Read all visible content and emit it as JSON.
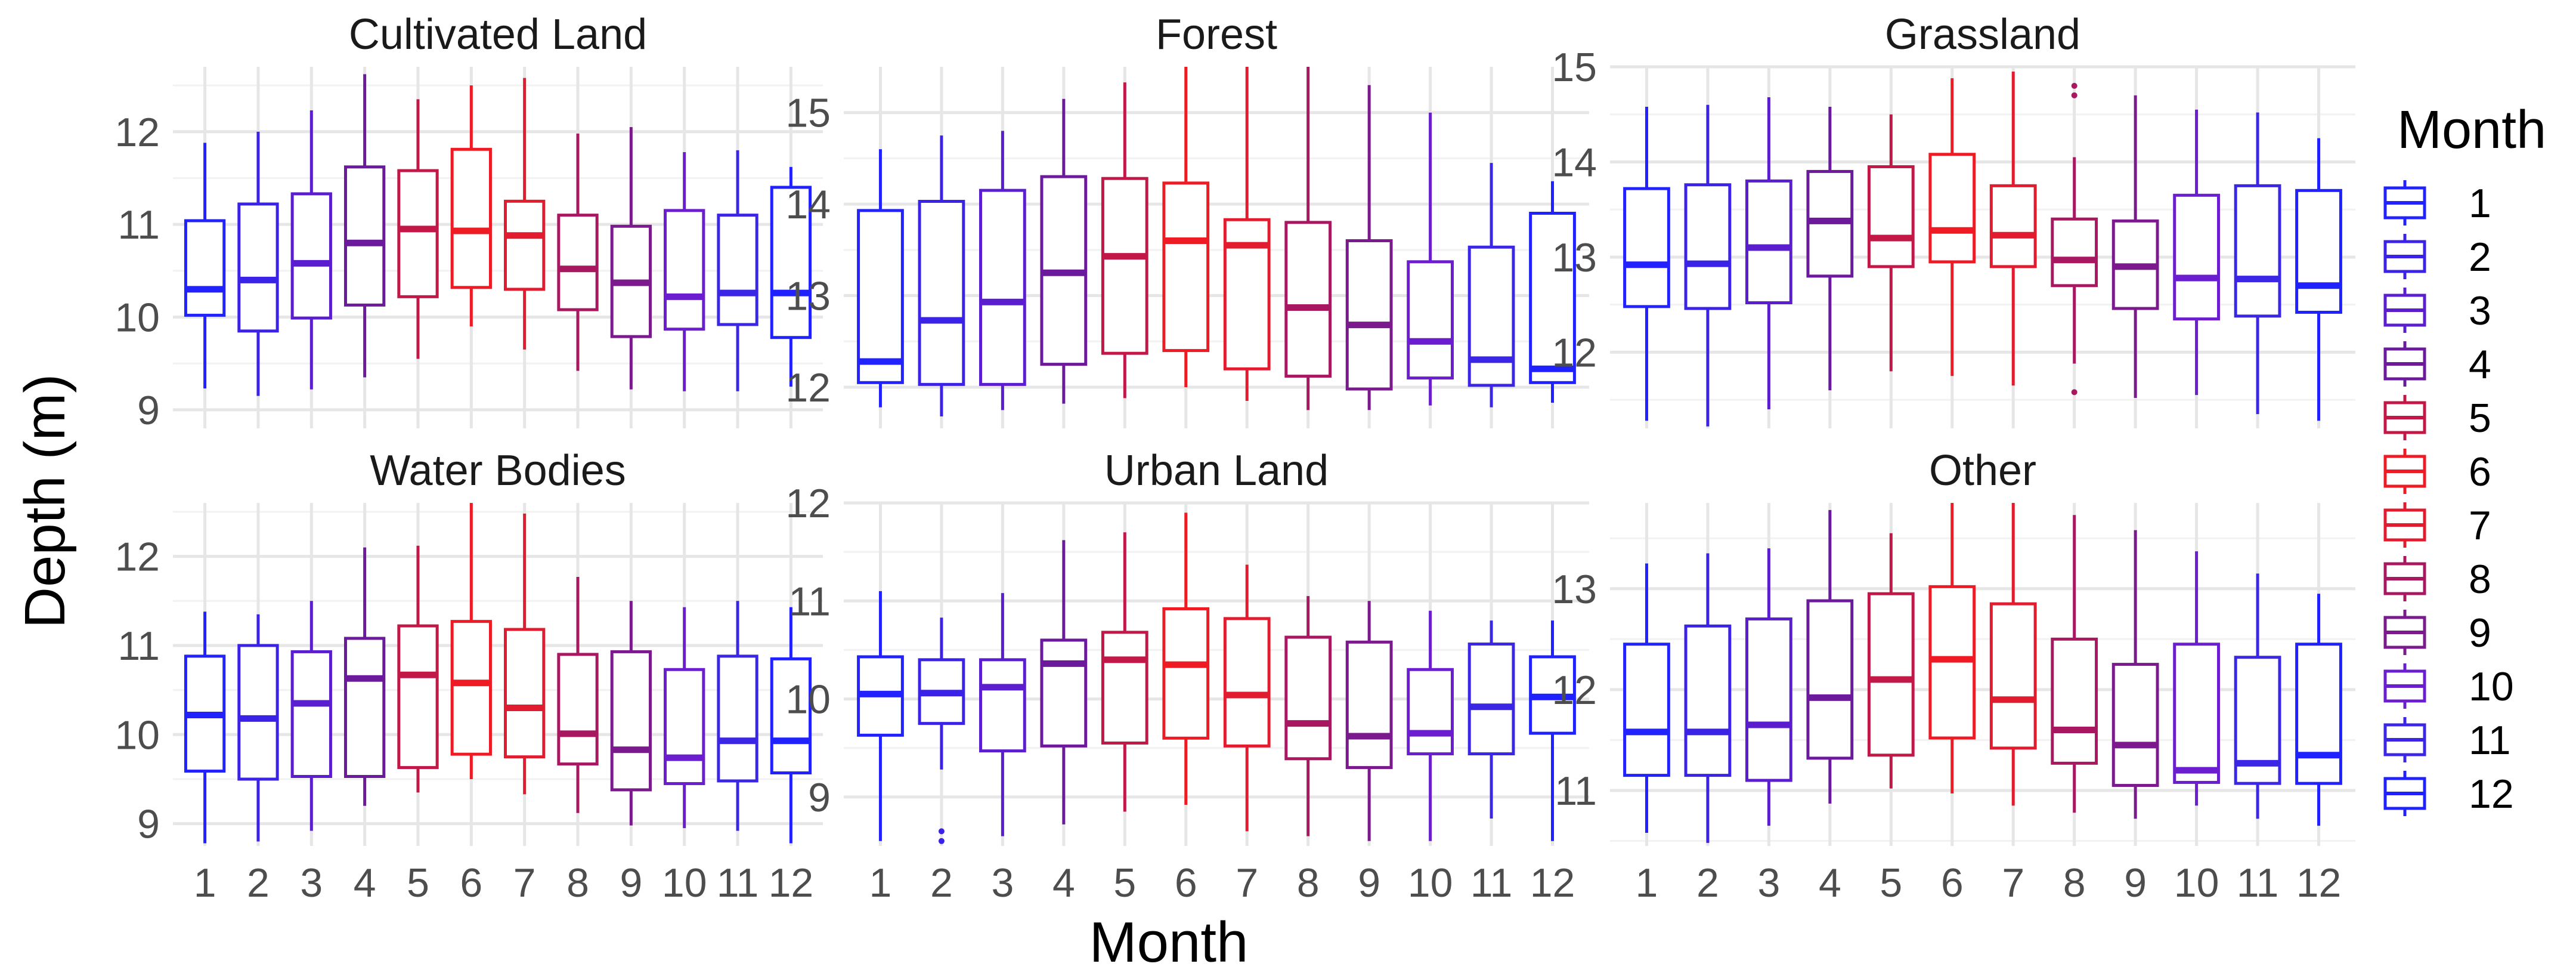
{
  "colors": {
    "1": "#2222ff",
    "2": "#3a22e6",
    "3": "#5a1ecf",
    "4": "#6a1a9a",
    "5": "#c21848",
    "6": "#ee1b24",
    "7": "#e21c2f",
    "8": "#a81860",
    "9": "#7a1a8c",
    "10": "#6a1ecf",
    "11": "#3a26e4",
    "12": "#1f22ff"
  },
  "chart_data": {
    "type": "boxplot",
    "xlabel": "Month",
    "ylabel": "Depth (m)",
    "legend": {
      "title": "Month",
      "position": "right",
      "entries": [
        "1",
        "2",
        "3",
        "4",
        "5",
        "6",
        "7",
        "8",
        "9",
        "10",
        "11",
        "12"
      ]
    },
    "categories": [
      "1",
      "2",
      "3",
      "4",
      "5",
      "6",
      "7",
      "8",
      "9",
      "10",
      "11",
      "12"
    ],
    "panels": [
      {
        "title": "Cultivated Land",
        "ylim": [
          8.8,
          12.7
        ],
        "yticks": [
          9,
          10,
          11,
          12
        ],
        "boxes": [
          {
            "month": "1",
            "whisker_low": 9.23,
            "q1": 10.02,
            "median": 10.3,
            "q3": 11.04,
            "whisker_high": 11.88
          },
          {
            "month": "2",
            "whisker_low": 9.15,
            "q1": 9.85,
            "median": 10.4,
            "q3": 11.22,
            "whisker_high": 12.0
          },
          {
            "month": "3",
            "whisker_low": 9.22,
            "q1": 9.99,
            "median": 10.58,
            "q3": 11.33,
            "whisker_high": 12.23
          },
          {
            "month": "4",
            "whisker_low": 9.35,
            "q1": 10.13,
            "median": 10.8,
            "q3": 11.62,
            "whisker_high": 12.62
          },
          {
            "month": "5",
            "whisker_low": 9.55,
            "q1": 10.22,
            "median": 10.95,
            "q3": 11.58,
            "whisker_high": 12.35
          },
          {
            "month": "6",
            "whisker_low": 9.9,
            "q1": 10.32,
            "median": 10.93,
            "q3": 11.81,
            "whisker_high": 12.5
          },
          {
            "month": "7",
            "whisker_low": 9.65,
            "q1": 10.3,
            "median": 10.88,
            "q3": 11.25,
            "whisker_high": 12.58
          },
          {
            "month": "8",
            "whisker_low": 9.42,
            "q1": 10.08,
            "median": 10.52,
            "q3": 11.1,
            "whisker_high": 11.98
          },
          {
            "month": "9",
            "whisker_low": 9.22,
            "q1": 9.79,
            "median": 10.37,
            "q3": 10.98,
            "whisker_high": 12.05
          },
          {
            "month": "10",
            "whisker_low": 9.2,
            "q1": 9.87,
            "median": 10.22,
            "q3": 11.15,
            "whisker_high": 11.78
          },
          {
            "month": "11",
            "whisker_low": 9.2,
            "q1": 9.92,
            "median": 10.26,
            "q3": 11.1,
            "whisker_high": 11.8
          },
          {
            "month": "12",
            "whisker_low": 9.25,
            "q1": 9.78,
            "median": 10.26,
            "q3": 11.4,
            "whisker_high": 11.62
          }
        ]
      },
      {
        "title": "Forest",
        "ylim": [
          11.55,
          15.5
        ],
        "yticks": [
          12,
          13,
          14,
          15
        ],
        "boxes": [
          {
            "month": "1",
            "whisker_low": 11.78,
            "q1": 12.05,
            "median": 12.28,
            "q3": 13.93,
            "whisker_high": 14.6
          },
          {
            "month": "2",
            "whisker_low": 11.68,
            "q1": 12.03,
            "median": 12.73,
            "q3": 14.03,
            "whisker_high": 14.75
          },
          {
            "month": "3",
            "whisker_low": 11.75,
            "q1": 12.03,
            "median": 12.93,
            "q3": 14.15,
            "whisker_high": 14.8
          },
          {
            "month": "4",
            "whisker_low": 11.82,
            "q1": 12.25,
            "median": 13.25,
            "q3": 14.3,
            "whisker_high": 15.15
          },
          {
            "month": "5",
            "whisker_low": 11.88,
            "q1": 12.37,
            "median": 13.43,
            "q3": 14.28,
            "whisker_high": 15.33
          },
          {
            "month": "6",
            "whisker_low": 12.0,
            "q1": 12.4,
            "median": 13.6,
            "q3": 14.23,
            "whisker_high": 15.5
          },
          {
            "month": "7",
            "whisker_low": 11.85,
            "q1": 12.2,
            "median": 13.55,
            "q3": 13.83,
            "whisker_high": 15.5
          },
          {
            "month": "8",
            "whisker_low": 11.75,
            "q1": 12.12,
            "median": 12.87,
            "q3": 13.8,
            "whisker_high": 15.5
          },
          {
            "month": "9",
            "whisker_low": 11.75,
            "q1": 11.98,
            "median": 12.68,
            "q3": 13.6,
            "whisker_high": 15.3
          },
          {
            "month": "10",
            "whisker_low": 11.8,
            "q1": 12.1,
            "median": 12.5,
            "q3": 13.37,
            "whisker_high": 15.0
          },
          {
            "month": "11",
            "whisker_low": 11.78,
            "q1": 12.02,
            "median": 12.3,
            "q3": 13.53,
            "whisker_high": 14.45
          },
          {
            "month": "12",
            "whisker_low": 11.83,
            "q1": 12.05,
            "median": 12.2,
            "q3": 13.9,
            "whisker_high": 14.25
          }
        ]
      },
      {
        "title": "Grassland",
        "ylim": [
          11.2,
          15.0
        ],
        "yticks": [
          12,
          13,
          14,
          15
        ],
        "boxes": [
          {
            "month": "1",
            "whisker_low": 11.28,
            "q1": 12.48,
            "median": 12.92,
            "q3": 13.72,
            "whisker_high": 14.58
          },
          {
            "month": "2",
            "whisker_low": 11.22,
            "q1": 12.46,
            "median": 12.93,
            "q3": 13.76,
            "whisker_high": 14.6
          },
          {
            "month": "3",
            "whisker_low": 11.4,
            "q1": 12.52,
            "median": 13.1,
            "q3": 13.8,
            "whisker_high": 14.68
          },
          {
            "month": "4",
            "whisker_low": 11.6,
            "q1": 12.8,
            "median": 13.38,
            "q3": 13.9,
            "whisker_high": 14.58
          },
          {
            "month": "5",
            "whisker_low": 11.8,
            "q1": 12.9,
            "median": 13.2,
            "q3": 13.95,
            "whisker_high": 14.5
          },
          {
            "month": "6",
            "whisker_low": 11.75,
            "q1": 12.95,
            "median": 13.28,
            "q3": 14.08,
            "whisker_high": 14.88
          },
          {
            "month": "7",
            "whisker_low": 11.65,
            "q1": 12.9,
            "median": 13.23,
            "q3": 13.75,
            "whisker_high": 14.95
          },
          {
            "month": "8",
            "whisker_low": 11.88,
            "q1": 12.7,
            "median": 12.97,
            "q3": 13.4,
            "whisker_high": 14.05,
            "outliers": [
              14.8,
              14.7,
              11.58
            ]
          },
          {
            "month": "9",
            "whisker_low": 11.52,
            "q1": 12.46,
            "median": 12.9,
            "q3": 13.38,
            "whisker_high": 14.7
          },
          {
            "month": "10",
            "whisker_low": 11.55,
            "q1": 12.35,
            "median": 12.78,
            "q3": 13.65,
            "whisker_high": 14.55
          },
          {
            "month": "11",
            "whisker_low": 11.35,
            "q1": 12.38,
            "median": 12.77,
            "q3": 13.75,
            "whisker_high": 14.52
          },
          {
            "month": "12",
            "whisker_low": 11.28,
            "q1": 12.42,
            "median": 12.7,
            "q3": 13.7,
            "whisker_high": 14.25
          }
        ]
      },
      {
        "title": "Water Bodies",
        "ylim": [
          8.75,
          12.6
        ],
        "yticks": [
          9,
          10,
          11,
          12
        ],
        "boxes": [
          {
            "month": "1",
            "whisker_low": 8.78,
            "q1": 9.59,
            "median": 10.22,
            "q3": 10.88,
            "whisker_high": 11.38
          },
          {
            "month": "2",
            "whisker_low": 8.8,
            "q1": 9.5,
            "median": 10.18,
            "q3": 11.0,
            "whisker_high": 11.35
          },
          {
            "month": "3",
            "whisker_low": 8.92,
            "q1": 9.53,
            "median": 10.35,
            "q3": 10.93,
            "whisker_high": 11.5
          },
          {
            "month": "4",
            "whisker_low": 9.2,
            "q1": 9.53,
            "median": 10.63,
            "q3": 11.08,
            "whisker_high": 12.1
          },
          {
            "month": "5",
            "whisker_low": 9.35,
            "q1": 9.63,
            "median": 10.67,
            "q3": 11.22,
            "whisker_high": 12.12
          },
          {
            "month": "6",
            "whisker_low": 9.5,
            "q1": 9.78,
            "median": 10.58,
            "q3": 11.27,
            "whisker_high": 12.6
          },
          {
            "month": "7",
            "whisker_low": 9.33,
            "q1": 9.75,
            "median": 10.3,
            "q3": 11.18,
            "whisker_high": 12.48
          },
          {
            "month": "8",
            "whisker_low": 9.12,
            "q1": 9.67,
            "median": 10.01,
            "q3": 10.9,
            "whisker_high": 11.77
          },
          {
            "month": "9",
            "whisker_low": 8.98,
            "q1": 9.38,
            "median": 9.83,
            "q3": 10.93,
            "whisker_high": 11.5
          },
          {
            "month": "10",
            "whisker_low": 8.95,
            "q1": 9.45,
            "median": 9.74,
            "q3": 10.73,
            "whisker_high": 11.43
          },
          {
            "month": "11",
            "whisker_low": 8.92,
            "q1": 9.48,
            "median": 9.93,
            "q3": 10.88,
            "whisker_high": 11.5
          },
          {
            "month": "12",
            "whisker_low": 8.78,
            "q1": 9.57,
            "median": 9.93,
            "q3": 10.85,
            "whisker_high": 11.43
          }
        ]
      },
      {
        "title": "Urban Land",
        "ylim": [
          8.5,
          12.0
        ],
        "yticks": [
          9,
          10,
          11,
          12
        ],
        "boxes": [
          {
            "month": "1",
            "whisker_low": 8.55,
            "q1": 9.63,
            "median": 10.05,
            "q3": 10.43,
            "whisker_high": 11.1
          },
          {
            "month": "2",
            "whisker_low": 9.28,
            "q1": 9.75,
            "median": 10.06,
            "q3": 10.4,
            "whisker_high": 10.83,
            "outliers": [
              8.65,
              8.55
            ]
          },
          {
            "month": "3",
            "whisker_low": 8.6,
            "q1": 9.47,
            "median": 10.12,
            "q3": 10.4,
            "whisker_high": 11.08
          },
          {
            "month": "4",
            "whisker_low": 8.72,
            "q1": 9.52,
            "median": 10.36,
            "q3": 10.6,
            "whisker_high": 11.62
          },
          {
            "month": "5",
            "whisker_low": 8.85,
            "q1": 9.55,
            "median": 10.4,
            "q3": 10.68,
            "whisker_high": 11.7
          },
          {
            "month": "6",
            "whisker_low": 8.92,
            "q1": 9.6,
            "median": 10.35,
            "q3": 10.92,
            "whisker_high": 11.9
          },
          {
            "month": "7",
            "whisker_low": 8.65,
            "q1": 9.52,
            "median": 10.04,
            "q3": 10.82,
            "whisker_high": 11.37
          },
          {
            "month": "8",
            "whisker_low": 8.6,
            "q1": 9.39,
            "median": 9.75,
            "q3": 10.63,
            "whisker_high": 11.05
          },
          {
            "month": "9",
            "whisker_low": 8.55,
            "q1": 9.3,
            "median": 9.62,
            "q3": 10.58,
            "whisker_high": 11.0
          },
          {
            "month": "10",
            "whisker_low": 8.55,
            "q1": 9.44,
            "median": 9.65,
            "q3": 10.3,
            "whisker_high": 10.9
          },
          {
            "month": "11",
            "whisker_low": 8.78,
            "q1": 9.44,
            "median": 9.92,
            "q3": 10.56,
            "whisker_high": 10.8
          },
          {
            "month": "12",
            "whisker_low": 8.55,
            "q1": 9.65,
            "median": 10.02,
            "q3": 10.43,
            "whisker_high": 10.8
          }
        ]
      },
      {
        "title": "Other",
        "ylim": [
          10.45,
          13.85
        ],
        "yticks": [
          11,
          12,
          13
        ],
        "boxes": [
          {
            "month": "1",
            "whisker_low": 10.58,
            "q1": 11.15,
            "median": 11.58,
            "q3": 12.45,
            "whisker_high": 13.25
          },
          {
            "month": "2",
            "whisker_low": 10.48,
            "q1": 11.15,
            "median": 11.58,
            "q3": 12.63,
            "whisker_high": 13.35
          },
          {
            "month": "3",
            "whisker_low": 10.65,
            "q1": 11.1,
            "median": 11.65,
            "q3": 12.7,
            "whisker_high": 13.4
          },
          {
            "month": "4",
            "whisker_low": 10.87,
            "q1": 11.32,
            "median": 11.92,
            "q3": 12.88,
            "whisker_high": 13.78
          },
          {
            "month": "5",
            "whisker_low": 11.02,
            "q1": 11.35,
            "median": 12.1,
            "q3": 12.95,
            "whisker_high": 13.55
          },
          {
            "month": "6",
            "whisker_low": 10.97,
            "q1": 11.52,
            "median": 12.3,
            "q3": 13.02,
            "whisker_high": 13.85
          },
          {
            "month": "7",
            "whisker_low": 10.85,
            "q1": 11.42,
            "median": 11.9,
            "q3": 12.85,
            "whisker_high": 13.85
          },
          {
            "month": "8",
            "whisker_low": 10.78,
            "q1": 11.27,
            "median": 11.6,
            "q3": 12.5,
            "whisker_high": 13.73
          },
          {
            "month": "9",
            "whisker_low": 10.72,
            "q1": 11.05,
            "median": 11.45,
            "q3": 12.25,
            "whisker_high": 13.58
          },
          {
            "month": "10",
            "whisker_low": 10.85,
            "q1": 11.08,
            "median": 11.2,
            "q3": 12.45,
            "whisker_high": 13.37
          },
          {
            "month": "11",
            "whisker_low": 10.72,
            "q1": 11.07,
            "median": 11.27,
            "q3": 12.32,
            "whisker_high": 13.15
          },
          {
            "month": "12",
            "whisker_low": 10.65,
            "q1": 11.07,
            "median": 11.35,
            "q3": 12.45,
            "whisker_high": 12.95
          }
        ]
      }
    ]
  }
}
